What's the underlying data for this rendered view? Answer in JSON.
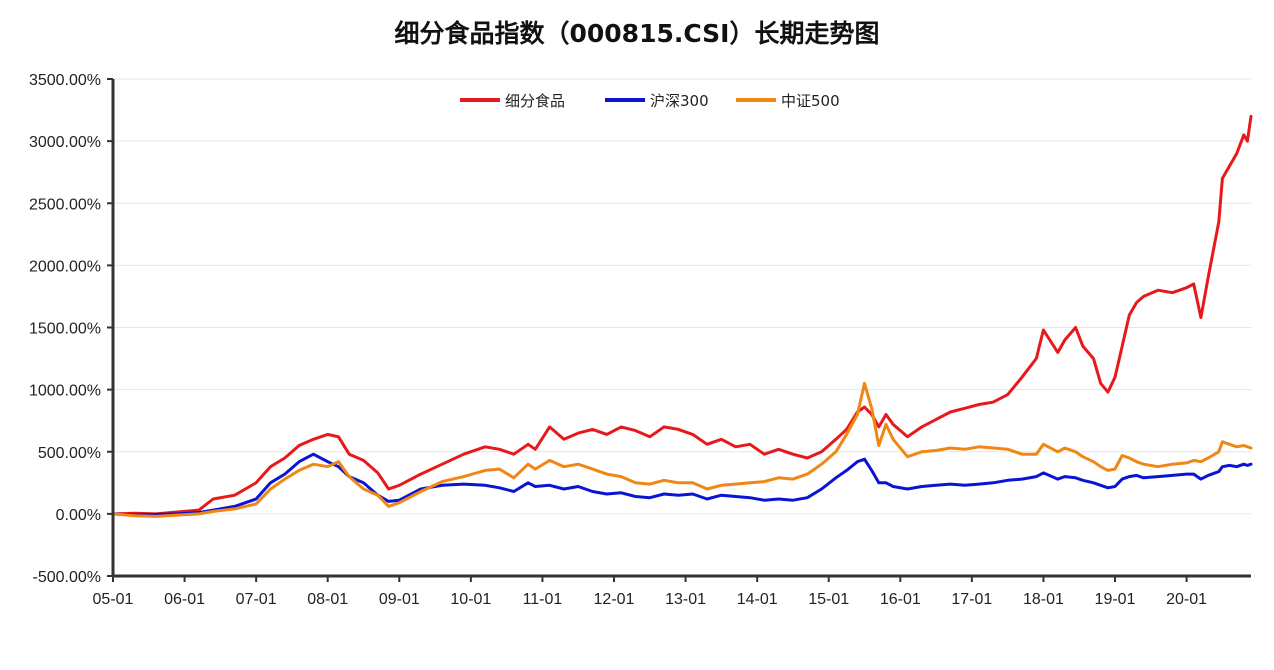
{
  "chart_data": {
    "type": "line",
    "title": "细分食品指数（000815.CSI）长期走势图",
    "xlabel": "",
    "ylabel": "",
    "ylim": [
      -500,
      3500
    ],
    "y_ticks": [
      "-500.00%",
      "0.00%",
      "500.00%",
      "1000.00%",
      "1500.00%",
      "2000.00%",
      "2500.00%",
      "3000.00%",
      "3500.00%"
    ],
    "y_tick_values": [
      -500,
      0,
      500,
      1000,
      1500,
      2000,
      2500,
      3000,
      3500
    ],
    "x_ticks": [
      "05-01",
      "06-01",
      "07-01",
      "08-01",
      "09-01",
      "10-01",
      "11-01",
      "12-01",
      "13-01",
      "14-01",
      "15-01",
      "16-01",
      "17-01",
      "18-01",
      "19-01",
      "20-01"
    ],
    "x_tick_values": [
      2005.0,
      2006.0,
      2007.0,
      2008.0,
      2009.0,
      2010.0,
      2011.0,
      2012.0,
      2013.0,
      2014.0,
      2015.0,
      2016.0,
      2017.0,
      2018.0,
      2019.0,
      2020.0
    ],
    "xlim": [
      2005.0,
      2020.9
    ],
    "grid": true,
    "legend_position": "top-center",
    "series": [
      {
        "name": "细分食品",
        "color": "#e8191a",
        "x": [
          2005.0,
          2005.3,
          2005.6,
          2005.9,
          2006.2,
          2006.4,
          2006.7,
          2007.0,
          2007.2,
          2007.4,
          2007.6,
          2007.8,
          2008.0,
          2008.15,
          2008.3,
          2008.5,
          2008.7,
          2008.85,
          2009.0,
          2009.3,
          2009.6,
          2009.9,
          2010.2,
          2010.4,
          2010.6,
          2010.8,
          2010.9,
          2011.1,
          2011.3,
          2011.5,
          2011.7,
          2011.9,
          2012.1,
          2012.3,
          2012.5,
          2012.7,
          2012.9,
          2013.1,
          2013.3,
          2013.5,
          2013.7,
          2013.9,
          2014.1,
          2014.3,
          2014.5,
          2014.7,
          2014.9,
          2015.1,
          2015.25,
          2015.4,
          2015.5,
          2015.6,
          2015.7,
          2015.8,
          2015.9,
          2016.1,
          2016.3,
          2016.5,
          2016.7,
          2016.9,
          2017.1,
          2017.3,
          2017.5,
          2017.7,
          2017.9,
          2018.0,
          2018.2,
          2018.3,
          2018.45,
          2018.55,
          2018.7,
          2018.8,
          2018.9,
          2019.0,
          2019.1,
          2019.2,
          2019.3,
          2019.4,
          2019.6,
          2019.8,
          2020.0,
          2020.1,
          2020.2,
          2020.3,
          2020.45,
          2020.5,
          2020.6,
          2020.7,
          2020.8,
          2020.85,
          2020.9
        ],
        "values": [
          0,
          5,
          0,
          15,
          30,
          120,
          150,
          250,
          380,
          450,
          550,
          600,
          640,
          620,
          480,
          430,
          330,
          200,
          230,
          320,
          400,
          480,
          540,
          520,
          480,
          560,
          520,
          700,
          600,
          650,
          680,
          640,
          700,
          670,
          620,
          700,
          680,
          640,
          560,
          600,
          540,
          560,
          480,
          520,
          480,
          450,
          500,
          600,
          680,
          820,
          860,
          800,
          700,
          800,
          720,
          620,
          700,
          760,
          820,
          850,
          880,
          900,
          960,
          1100,
          1250,
          1480,
          1300,
          1400,
          1500,
          1350,
          1250,
          1050,
          980,
          1100,
          1350,
          1600,
          1700,
          1750,
          1800,
          1780,
          1820,
          1850,
          1580,
          1900,
          2350,
          2700,
          2800,
          2900,
          3050,
          3000,
          3200
        ]
      },
      {
        "name": "沪深300",
        "color": "#0a14d4",
        "x": [
          2005.0,
          2005.3,
          2005.6,
          2005.9,
          2006.2,
          2006.4,
          2006.7,
          2007.0,
          2007.2,
          2007.4,
          2007.6,
          2007.8,
          2008.0,
          2008.15,
          2008.3,
          2008.5,
          2008.7,
          2008.85,
          2009.0,
          2009.3,
          2009.6,
          2009.9,
          2010.2,
          2010.4,
          2010.6,
          2010.8,
          2010.9,
          2011.1,
          2011.3,
          2011.5,
          2011.7,
          2011.9,
          2012.1,
          2012.3,
          2012.5,
          2012.7,
          2012.9,
          2013.1,
          2013.3,
          2013.5,
          2013.7,
          2013.9,
          2014.1,
          2014.3,
          2014.5,
          2014.7,
          2014.9,
          2015.1,
          2015.25,
          2015.4,
          2015.5,
          2015.6,
          2015.7,
          2015.8,
          2015.9,
          2016.1,
          2016.3,
          2016.5,
          2016.7,
          2016.9,
          2017.1,
          2017.3,
          2017.5,
          2017.7,
          2017.9,
          2018.0,
          2018.2,
          2018.3,
          2018.45,
          2018.55,
          2018.7,
          2018.8,
          2018.9,
          2019.0,
          2019.1,
          2019.2,
          2019.3,
          2019.4,
          2019.6,
          2019.8,
          2020.0,
          2020.1,
          2020.2,
          2020.3,
          2020.45,
          2020.5,
          2020.6,
          2020.7,
          2020.8,
          2020.85,
          2020.9
        ],
        "values": [
          0,
          -10,
          -5,
          0,
          10,
          30,
          60,
          120,
          250,
          320,
          420,
          480,
          420,
          380,
          300,
          250,
          150,
          100,
          110,
          200,
          230,
          240,
          230,
          210,
          180,
          250,
          220,
          230,
          200,
          220,
          180,
          160,
          170,
          140,
          130,
          160,
          150,
          160,
          120,
          150,
          140,
          130,
          110,
          120,
          110,
          130,
          200,
          290,
          350,
          420,
          440,
          350,
          250,
          250,
          220,
          200,
          220,
          230,
          240,
          230,
          240,
          250,
          270,
          280,
          300,
          330,
          280,
          300,
          290,
          270,
          250,
          230,
          210,
          220,
          280,
          300,
          310,
          290,
          300,
          310,
          320,
          320,
          280,
          310,
          340,
          380,
          390,
          380,
          400,
          390,
          400
        ]
      },
      {
        "name": "中证500",
        "color": "#f08714",
        "x": [
          2005.0,
          2005.3,
          2005.6,
          2005.9,
          2006.2,
          2006.4,
          2006.7,
          2007.0,
          2007.2,
          2007.4,
          2007.6,
          2007.8,
          2008.0,
          2008.15,
          2008.3,
          2008.5,
          2008.7,
          2008.85,
          2009.0,
          2009.3,
          2009.6,
          2009.9,
          2010.2,
          2010.4,
          2010.6,
          2010.8,
          2010.9,
          2011.1,
          2011.3,
          2011.5,
          2011.7,
          2011.9,
          2012.1,
          2012.3,
          2012.5,
          2012.7,
          2012.9,
          2013.1,
          2013.3,
          2013.5,
          2013.7,
          2013.9,
          2014.1,
          2014.3,
          2014.5,
          2014.7,
          2014.9,
          2015.1,
          2015.25,
          2015.4,
          2015.5,
          2015.6,
          2015.7,
          2015.8,
          2015.9,
          2016.1,
          2016.3,
          2016.5,
          2016.7,
          2016.9,
          2017.1,
          2017.3,
          2017.5,
          2017.7,
          2017.9,
          2018.0,
          2018.2,
          2018.3,
          2018.45,
          2018.55,
          2018.7,
          2018.8,
          2018.9,
          2019.0,
          2019.1,
          2019.2,
          2019.3,
          2019.4,
          2019.6,
          2019.8,
          2020.0,
          2020.1,
          2020.2,
          2020.3,
          2020.45,
          2020.5,
          2020.6,
          2020.7,
          2020.8,
          2020.85,
          2020.9
        ],
        "values": [
          0,
          -15,
          -20,
          -10,
          0,
          20,
          40,
          80,
          200,
          280,
          350,
          400,
          380,
          420,
          300,
          200,
          150,
          60,
          90,
          180,
          260,
          300,
          350,
          360,
          290,
          400,
          360,
          430,
          380,
          400,
          360,
          320,
          300,
          250,
          240,
          270,
          250,
          250,
          200,
          230,
          240,
          250,
          260,
          290,
          280,
          320,
          400,
          500,
          640,
          800,
          1050,
          850,
          550,
          720,
          600,
          460,
          500,
          510,
          530,
          520,
          540,
          530,
          520,
          480,
          480,
          560,
          500,
          530,
          500,
          460,
          420,
          380,
          350,
          360,
          470,
          450,
          420,
          400,
          380,
          400,
          410,
          430,
          420,
          450,
          500,
          580,
          560,
          540,
          550,
          540,
          530
        ]
      }
    ]
  }
}
